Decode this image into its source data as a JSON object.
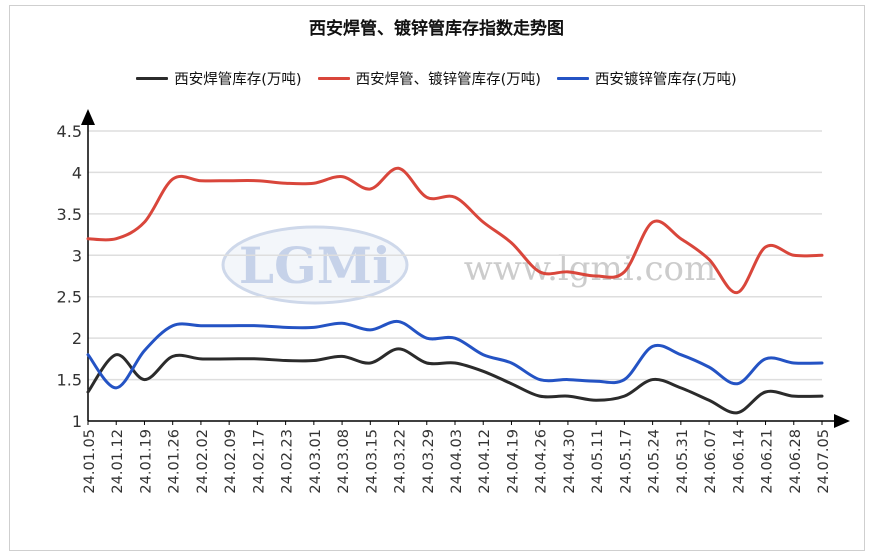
{
  "chart_data": {
    "type": "line",
    "title": "西安焊管、镀锌管库存指数走势图",
    "ylim": [
      1,
      4.5
    ],
    "yticks": [
      "1",
      "1.5",
      "2",
      "2.5",
      "3",
      "3.5",
      "4",
      "4.5"
    ],
    "grid": true,
    "legend_position": "top",
    "categories": [
      "24.01.05",
      "24.01.12",
      "24.01.19",
      "24.01.26",
      "24.02.02",
      "24.02.09",
      "24.02.17",
      "24.02.23",
      "24.03.01",
      "24.03.08",
      "24.03.15",
      "24.03.22",
      "24.03.29",
      "24.04.03",
      "24.04.12",
      "24.04.19",
      "24.04.26",
      "24.04.30",
      "24.05.11",
      "24.05.17",
      "24.05.24",
      "24.05.31",
      "24.06.07",
      "24.06.14",
      "24.06.21",
      "24.06.28",
      "24.07.05"
    ],
    "series": [
      {
        "name": "西安焊管库存(万吨)",
        "color": "#2b2b2b",
        "values": [
          1.35,
          1.8,
          1.5,
          1.78,
          1.75,
          1.75,
          1.75,
          1.73,
          1.73,
          1.78,
          1.7,
          1.87,
          1.7,
          1.7,
          1.6,
          1.45,
          1.3,
          1.3,
          1.25,
          1.3,
          1.5,
          1.4,
          1.25,
          1.1,
          1.35,
          1.3,
          1.3
        ]
      },
      {
        "name": "西安焊管、镀锌管库存(万吨)",
        "color": "#d9463b",
        "values": [
          3.2,
          3.2,
          3.4,
          3.92,
          3.9,
          3.9,
          3.9,
          3.87,
          3.87,
          3.95,
          3.8,
          4.05,
          3.7,
          3.7,
          3.4,
          3.15,
          2.8,
          2.8,
          2.75,
          2.8,
          3.4,
          3.2,
          2.95,
          2.55,
          3.1,
          3.0,
          3.0
        ]
      },
      {
        "name": "西安镀锌管库存(万吨)",
        "color": "#2453c4",
        "values": [
          1.8,
          1.4,
          1.85,
          2.15,
          2.15,
          2.15,
          2.15,
          2.13,
          2.13,
          2.18,
          2.1,
          2.2,
          2.0,
          2.0,
          1.8,
          1.7,
          1.5,
          1.5,
          1.48,
          1.5,
          1.9,
          1.8,
          1.65,
          1.45,
          1.75,
          1.7,
          1.7
        ]
      }
    ]
  },
  "watermark": {
    "logo_text": "LGMi",
    "site_text": "www.lgmi.com"
  },
  "colors": {
    "grid": "#dedede",
    "axis": "#000000",
    "frame": "#cfcfcf"
  }
}
